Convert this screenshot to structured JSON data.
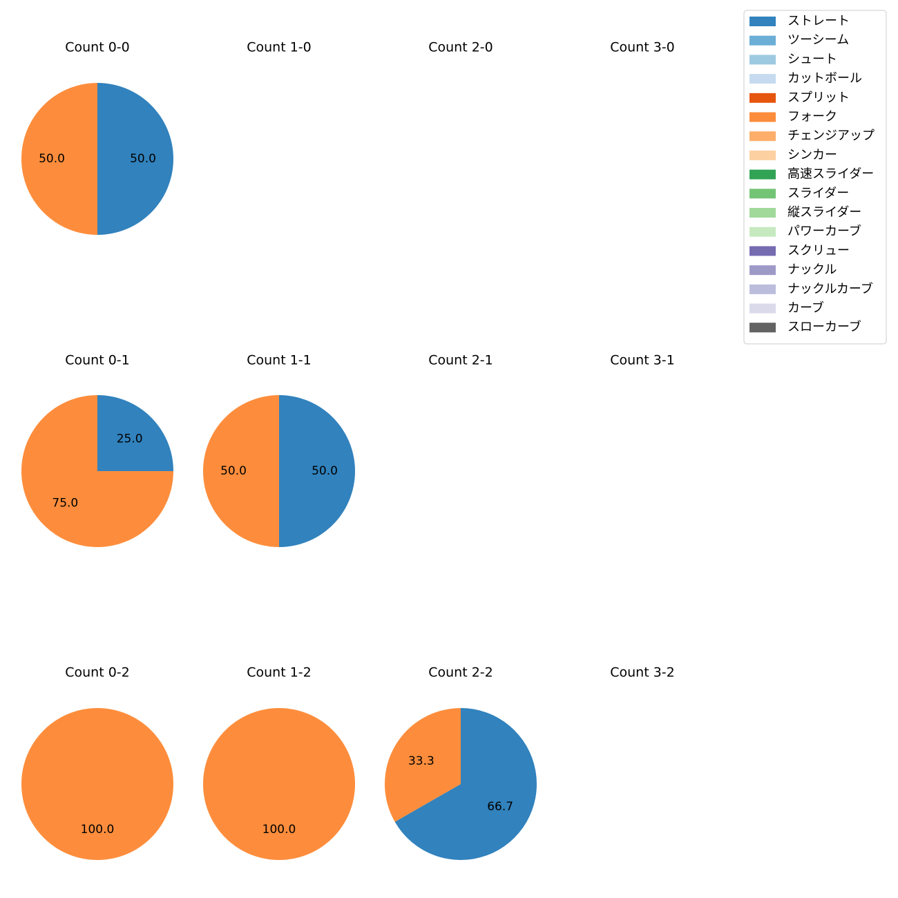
{
  "chart_data": {
    "type": "pie",
    "layout": "grid 3 rows x 4 columns",
    "legend_placement": "top-right",
    "colors": {
      "ストレート": "#3182bd",
      "ツーシーム": "#6baed6",
      "シュート": "#9ecae1",
      "カットボール": "#c6dbef",
      "スプリット": "#e6550d",
      "フォーク": "#fd8d3c",
      "チェンジアップ": "#fdae6b",
      "シンカー": "#fdd0a2",
      "高速スライダー": "#31a354",
      "スライダー": "#74c476",
      "縦スライダー": "#a1d99b",
      "パワーカーブ": "#c7e9c0",
      "スクリュー": "#756bb1",
      "ナックル": "#9e9ac8",
      "ナックルカーブ": "#bcbddc",
      "カーブ": "#dadaeb",
      "スローカーブ": "#636363"
    },
    "legend": [
      "ストレート",
      "ツーシーム",
      "シュート",
      "カットボール",
      "スプリット",
      "フォーク",
      "チェンジアップ",
      "シンカー",
      "高速スライダー",
      "スライダー",
      "縦スライダー",
      "パワーカーブ",
      "スクリュー",
      "ナックル",
      "ナックルカーブ",
      "カーブ",
      "スローカーブ"
    ],
    "subplots": [
      {
        "title": "Count 0-0",
        "slices": [
          {
            "label": "ストレート",
            "value": 50.0
          },
          {
            "label": "フォーク",
            "value": 50.0
          }
        ],
        "labels": [
          "50.0",
          "50.0"
        ]
      },
      {
        "title": "Count 1-0",
        "slices": [],
        "labels": []
      },
      {
        "title": "Count 2-0",
        "slices": [],
        "labels": []
      },
      {
        "title": "Count 3-0",
        "slices": [],
        "labels": []
      },
      {
        "title": "Count 0-1",
        "slices": [
          {
            "label": "ストレート",
            "value": 25.0
          },
          {
            "label": "フォーク",
            "value": 75.0
          }
        ],
        "labels": [
          "25.0",
          "75.0"
        ]
      },
      {
        "title": "Count 1-1",
        "slices": [
          {
            "label": "ストレート",
            "value": 50.0
          },
          {
            "label": "フォーク",
            "value": 50.0
          }
        ],
        "labels": [
          "50.0",
          "50.0"
        ]
      },
      {
        "title": "Count 2-1",
        "slices": [],
        "labels": []
      },
      {
        "title": "Count 3-1",
        "slices": [],
        "labels": []
      },
      {
        "title": "Count 0-2",
        "slices": [
          {
            "label": "フォーク",
            "value": 100.0
          }
        ],
        "labels": [
          "100.0"
        ]
      },
      {
        "title": "Count 1-2",
        "slices": [
          {
            "label": "フォーク",
            "value": 100.0
          }
        ],
        "labels": [
          "100.0"
        ]
      },
      {
        "title": "Count 2-2",
        "slices": [
          {
            "label": "ストレート",
            "value": 66.7
          },
          {
            "label": "フォーク",
            "value": 33.3
          }
        ],
        "labels": [
          "66.7",
          "33.3"
        ]
      },
      {
        "title": "Count 3-2",
        "slices": [],
        "labels": []
      }
    ]
  }
}
